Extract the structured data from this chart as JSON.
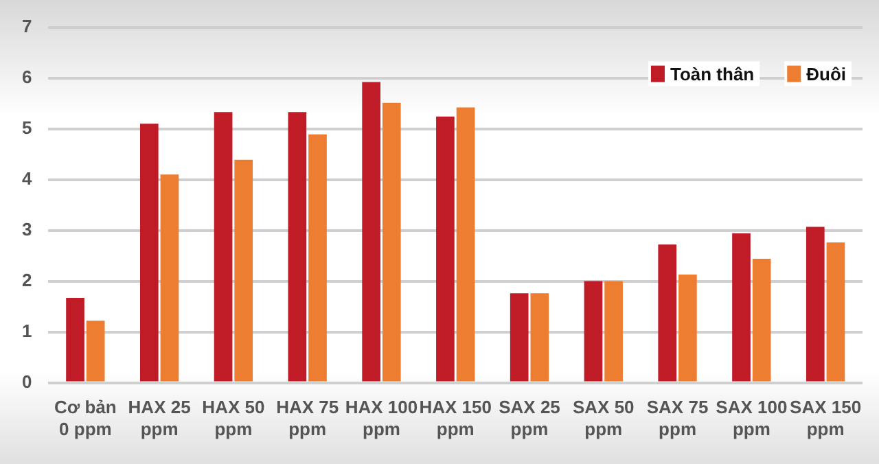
{
  "chart_data": {
    "type": "bar",
    "categories": [
      "Cơ bản\n0 ppm",
      "HAX 25\nppm",
      "HAX 50\nppm",
      "HAX 75\nppm",
      "HAX 100\nppm",
      "HAX 150\nppm",
      "SAX 25\nppm",
      "SAX 50\nppm",
      "SAX 75\nppm",
      "SAX 100\nppm",
      "SAX 150\nppm"
    ],
    "series": [
      {
        "name": "Toàn thân",
        "color": "#c01c28",
        "values": [
          1.67,
          5.1,
          5.33,
          5.33,
          5.92,
          5.24,
          1.76,
          2.0,
          2.72,
          2.94,
          3.07
        ]
      },
      {
        "name": "Đuôi",
        "color": "#ed7d31",
        "values": [
          1.22,
          4.1,
          4.39,
          4.89,
          5.51,
          5.42,
          1.76,
          2.0,
          2.13,
          2.44,
          2.76
        ]
      }
    ],
    "ylim": [
      0,
      7
    ],
    "yticks": [
      0,
      1,
      2,
      3,
      4,
      5,
      6,
      7
    ],
    "grid": "y",
    "legend": "top right"
  }
}
